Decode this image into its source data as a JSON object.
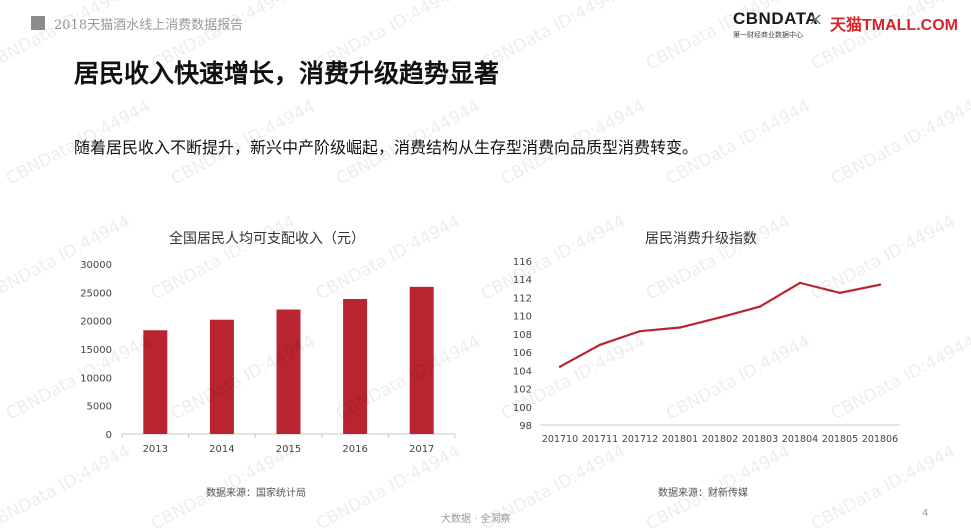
{
  "header": {
    "report_title": "2018天猫酒水线上消费数据报告",
    "logo_cbn": "CBNDATA",
    "logo_cbn_sub": "第一财经商业数据中心",
    "logo_separator": "×",
    "logo_tmall": "天猫TMALL.COM"
  },
  "title": "居民收入快速增长，消费升级趋势显著",
  "subtitle": "随着居民收入不断提升，新兴中产阶级崛起，消费结构从生存型消费向品质型消费转变。",
  "watermark": "CBNData ID:44944",
  "footer": "大数据 · 全洞察",
  "page_number": "4",
  "colors": {
    "bar": "#b8242f",
    "line": "#b8242f",
    "axis": "#c8c8c8"
  },
  "chart_data": [
    {
      "type": "bar",
      "title": "全国居民人均可支配收入（元）",
      "categories": [
        "2013",
        "2014",
        "2015",
        "2016",
        "2017"
      ],
      "values": [
        18311,
        20167,
        21966,
        23821,
        25974
      ],
      "ylim": [
        0,
        30000
      ],
      "yticks": [
        "30000",
        "25000",
        "20000",
        "15000",
        "10000",
        "5000",
        "0"
      ],
      "source": "数据来源：国家统计局"
    },
    {
      "type": "line",
      "title": "居民消费升级指数",
      "categories": [
        "201710",
        "201711",
        "201712",
        "201801",
        "201802",
        "201803",
        "201804",
        "201805",
        "201806"
      ],
      "values": [
        104.4,
        106.8,
        108.3,
        108.7,
        109.8,
        111.0,
        113.6,
        112.5,
        113.4
      ],
      "ylim": [
        98,
        116
      ],
      "yticks": [
        "116",
        "114",
        "112",
        "110",
        "108",
        "106",
        "104",
        "102",
        "100",
        "98"
      ],
      "source": "数据来源：财新传媒"
    }
  ]
}
